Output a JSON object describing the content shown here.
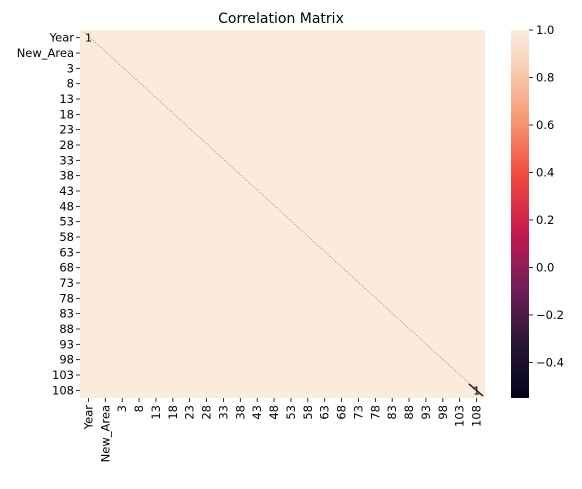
{
  "chart_data": {
    "type": "heatmap",
    "title": "Correlation Matrix",
    "labels": [
      "Year",
      "New_Area",
      "3",
      "8",
      "13",
      "18",
      "23",
      "28",
      "33",
      "38",
      "43",
      "48",
      "53",
      "58",
      "63",
      "68",
      "73",
      "78",
      "83",
      "88",
      "93",
      "98",
      "103",
      "108"
    ],
    "x_tick_labels": [
      "Year",
      "New_Area",
      "3",
      "8",
      "13",
      "18",
      "23",
      "28",
      "33",
      "38",
      "43",
      "48",
      "53",
      "58",
      "63",
      "68",
      "73",
      "78",
      "83",
      "88",
      "93",
      "98",
      "103",
      "108"
    ],
    "y_tick_labels": [
      "Year",
      "New_Area",
      "3",
      "8",
      "13",
      "18",
      "23",
      "28",
      "33",
      "38",
      "43",
      "48",
      "53",
      "58",
      "63",
      "68",
      "73",
      "78",
      "83",
      "88",
      "93",
      "98",
      "103",
      "108"
    ],
    "value_range": [
      -0.55,
      1.0
    ],
    "diagonal_value": 1,
    "off_diagonal_typical": 0.95,
    "colorbar": {
      "ticks": [
        1.0,
        0.8,
        0.6,
        0.4,
        0.2,
        0.0,
        -0.2,
        -0.4
      ],
      "tick_labels": [
        "1.0",
        "0.8",
        "0.6",
        "0.4",
        "0.2",
        "0.0",
        "−0.2",
        "−0.4"
      ],
      "min": -0.55,
      "max": 1.0
    },
    "annotations": [
      {
        "row": "Year",
        "col": "Year",
        "text": "1"
      },
      {
        "row": "108",
        "col": "108",
        "text": "1"
      }
    ],
    "grid": false,
    "colormap": "rocket"
  }
}
